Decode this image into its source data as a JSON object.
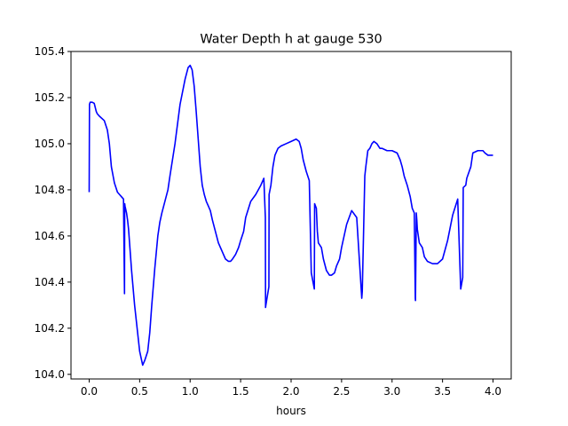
{
  "chart_data": {
    "type": "line",
    "title": "Water Depth h at gauge 530",
    "xlabel": "hours",
    "ylabel": "",
    "xlim": [
      -0.18,
      4.18
    ],
    "ylim": [
      103.98,
      105.4
    ],
    "xticks": [
      0.0,
      0.5,
      1.0,
      1.5,
      2.0,
      2.5,
      3.0,
      3.5,
      4.0
    ],
    "xtick_labels": [
      "0.0",
      "0.5",
      "1.0",
      "1.5",
      "2.0",
      "2.5",
      "3.0",
      "3.5",
      "4.0"
    ],
    "yticks": [
      104.0,
      104.2,
      104.4,
      104.6,
      104.8,
      105.0,
      105.2,
      105.4
    ],
    "ytick_labels": [
      "104.0",
      "104.2",
      "104.4",
      "104.6",
      "104.8",
      "105.0",
      "105.2",
      "105.4"
    ],
    "grid": false,
    "line_color": "#0000ff",
    "series": [
      {
        "x": [
          0.0,
          0.003,
          0.01,
          0.03,
          0.05,
          0.07,
          0.08,
          0.1,
          0.15,
          0.18,
          0.2,
          0.22,
          0.25,
          0.28,
          0.3,
          0.32,
          0.34,
          0.35,
          0.352,
          0.355,
          0.37,
          0.38,
          0.39,
          0.4,
          0.42,
          0.45,
          0.48,
          0.5,
          0.53,
          0.55,
          0.58,
          0.6,
          0.62,
          0.65,
          0.68,
          0.7,
          0.72,
          0.75,
          0.78,
          0.8,
          0.85,
          0.9,
          0.95,
          0.98,
          1.0,
          1.02,
          1.04,
          1.06,
          1.08,
          1.1,
          1.12,
          1.14,
          1.16,
          1.18,
          1.2,
          1.22,
          1.25,
          1.28,
          1.3,
          1.32,
          1.35,
          1.38,
          1.4,
          1.42,
          1.45,
          1.48,
          1.5,
          1.53,
          1.55,
          1.6,
          1.65,
          1.7,
          1.73,
          1.745,
          1.747,
          1.75,
          1.78,
          1.782,
          1.8,
          1.82,
          1.84,
          1.85,
          1.87,
          1.9,
          1.95,
          2.0,
          2.05,
          2.08,
          2.1,
          2.12,
          2.15,
          2.18,
          2.2,
          2.23,
          2.233,
          2.25,
          2.26,
          2.27,
          2.3,
          2.32,
          2.35,
          2.38,
          2.4,
          2.43,
          2.45,
          2.48,
          2.5,
          2.55,
          2.6,
          2.65,
          2.7,
          2.705,
          2.73,
          2.74,
          2.76,
          2.78,
          2.8,
          2.82,
          2.85,
          2.88,
          2.9,
          2.95,
          3.0,
          3.05,
          3.08,
          3.1,
          3.12,
          3.15,
          3.18,
          3.2,
          3.22,
          3.23,
          3.232,
          3.24,
          3.245,
          3.25,
          3.27,
          3.3,
          3.32,
          3.35,
          3.4,
          3.45,
          3.5,
          3.55,
          3.6,
          3.65,
          3.68,
          3.7,
          3.705,
          3.73,
          3.74,
          3.78,
          3.8,
          3.85,
          3.9,
          3.92,
          3.95,
          3.98,
          4.0
        ],
        "y": [
          104.79,
          105.17,
          105.18,
          105.18,
          105.175,
          105.14,
          105.13,
          105.12,
          105.1,
          105.06,
          105.0,
          104.9,
          104.83,
          104.79,
          104.78,
          104.77,
          104.76,
          104.35,
          104.74,
          104.73,
          104.7,
          104.67,
          104.63,
          104.57,
          104.45,
          104.3,
          104.18,
          104.1,
          104.04,
          104.06,
          104.1,
          104.18,
          104.3,
          104.46,
          104.6,
          104.66,
          104.7,
          104.75,
          104.8,
          104.86,
          105.0,
          105.17,
          105.28,
          105.33,
          105.34,
          105.32,
          105.25,
          105.14,
          105.02,
          104.9,
          104.82,
          104.78,
          104.75,
          104.73,
          104.71,
          104.67,
          104.62,
          104.57,
          104.55,
          104.53,
          104.5,
          104.49,
          104.49,
          104.5,
          104.52,
          104.55,
          104.58,
          104.62,
          104.68,
          104.75,
          104.78,
          104.82,
          104.85,
          104.68,
          104.29,
          104.3,
          104.38,
          104.78,
          104.82,
          104.9,
          104.95,
          104.96,
          104.98,
          104.99,
          105.0,
          105.01,
          105.02,
          105.01,
          104.98,
          104.93,
          104.88,
          104.84,
          104.44,
          104.37,
          104.74,
          104.72,
          104.62,
          104.57,
          104.55,
          104.5,
          104.45,
          104.43,
          104.43,
          104.44,
          104.47,
          104.5,
          104.55,
          104.65,
          104.71,
          104.68,
          104.33,
          104.36,
          104.86,
          104.9,
          104.97,
          104.98,
          105.0,
          105.01,
          105.0,
          104.98,
          104.98,
          104.97,
          104.97,
          104.96,
          104.93,
          104.9,
          104.86,
          104.82,
          104.77,
          104.72,
          104.7,
          104.33,
          104.32,
          104.7,
          104.67,
          104.63,
          104.57,
          104.55,
          104.51,
          104.49,
          104.48,
          104.48,
          104.5,
          104.58,
          104.69,
          104.76,
          104.37,
          104.42,
          104.81,
          104.82,
          104.85,
          104.9,
          104.96,
          104.97,
          104.97,
          104.96,
          104.95,
          104.95,
          104.95
        ]
      }
    ]
  }
}
